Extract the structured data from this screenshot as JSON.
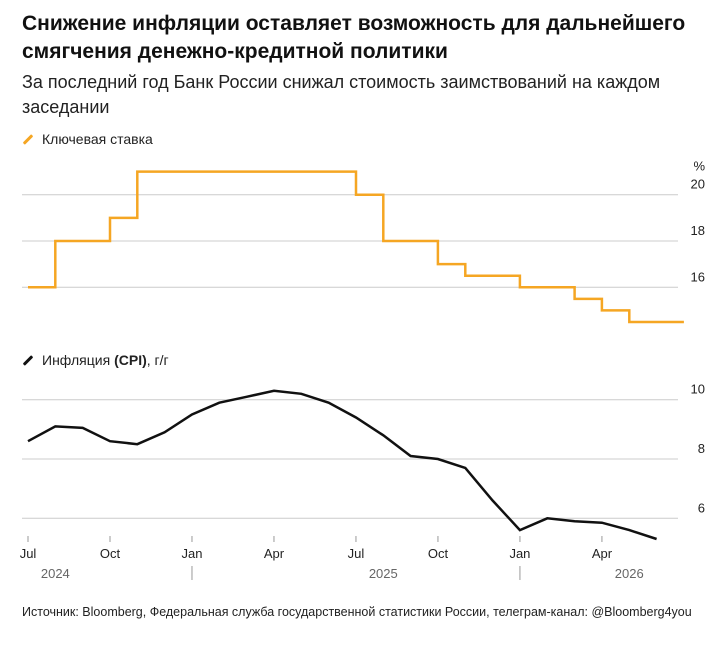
{
  "header": {
    "title": "Снижение инфляции оставляет возможность для дальнейшего смягчения денежно-кредитной политики",
    "subtitle": "За последний год Банк России снижал стоимость заимствований на каждом заседании"
  },
  "colors": {
    "rate": "#f5a623",
    "cpi": "#111111",
    "grid": "#cccccc"
  },
  "chart_data": [
    {
      "type": "line",
      "step": true,
      "series": [
        {
          "name": "Ключевая ставка",
          "points": [
            [
              "2024-06",
              16
            ],
            [
              "2024-07",
              16
            ],
            [
              "2024-07",
              18
            ],
            [
              "2024-09",
              18
            ],
            [
              "2024-09",
              19
            ],
            [
              "2024-10",
              19
            ],
            [
              "2024-10",
              21
            ],
            [
              "2025-06",
              21
            ],
            [
              "2025-06",
              20
            ],
            [
              "2025-07",
              20
            ],
            [
              "2025-07",
              18
            ],
            [
              "2025-09",
              18
            ],
            [
              "2025-09",
              17
            ],
            [
              "2025-10",
              17
            ],
            [
              "2025-10",
              16.5
            ],
            [
              "2025-12",
              16.5
            ],
            [
              "2025-12",
              16
            ],
            [
              "2026-02",
              16
            ],
            [
              "2026-02",
              15.5
            ],
            [
              "2026-03",
              15.5
            ],
            [
              "2026-03",
              15
            ],
            [
              "2026-04",
              15
            ],
            [
              "2026-04",
              14.5
            ],
            [
              "2026-06",
              14.5
            ]
          ]
        }
      ],
      "ylim": [
        14.5,
        21.5
      ],
      "yticks": [
        16,
        18,
        20
      ],
      "yunit": "%"
    },
    {
      "type": "line",
      "series": [
        {
          "name": "Инфляция (CPI), г/г",
          "points": [
            [
              "2024-06",
              8.6
            ],
            [
              "2024-07",
              9.1
            ],
            [
              "2024-08",
              9.05
            ],
            [
              "2024-09",
              8.6
            ],
            [
              "2024-10",
              8.5
            ],
            [
              "2024-11",
              8.9
            ],
            [
              "2024-12",
              9.5
            ],
            [
              "2025-01",
              9.9
            ],
            [
              "2025-02",
              10.1
            ],
            [
              "2025-03",
              10.3
            ],
            [
              "2025-04",
              10.2
            ],
            [
              "2025-05",
              9.9
            ],
            [
              "2025-06",
              9.4
            ],
            [
              "2025-07",
              8.8
            ],
            [
              "2025-08",
              8.1
            ],
            [
              "2025-09",
              8.0
            ],
            [
              "2025-10",
              7.7
            ],
            [
              "2025-11",
              6.6
            ],
            [
              "2025-12",
              5.6
            ],
            [
              "2026-01",
              6.0
            ],
            [
              "2026-02",
              5.9
            ],
            [
              "2026-03",
              5.85
            ],
            [
              "2026-04",
              5.6
            ],
            [
              "2026-05",
              5.3
            ]
          ]
        }
      ],
      "ylim": [
        5.2,
        10.8
      ],
      "yticks": [
        6,
        8,
        10
      ]
    }
  ],
  "xaxis": {
    "ticks": [
      {
        "date": "2024-06",
        "label": "Jul"
      },
      {
        "date": "2024-09",
        "label": "Oct"
      },
      {
        "date": "2024-12",
        "label": "Jan"
      },
      {
        "date": "2025-03",
        "label": "Apr"
      },
      {
        "date": "2025-06",
        "label": "Jul"
      },
      {
        "date": "2025-09",
        "label": "Oct"
      },
      {
        "date": "2025-12",
        "label": "Jan"
      },
      {
        "date": "2026-03",
        "label": "Apr"
      }
    ],
    "years": [
      {
        "date": "2024-07",
        "label": "2024"
      },
      {
        "date": "2025-07",
        "label": "2025"
      },
      {
        "date": "2026-04",
        "label": "2026"
      }
    ],
    "year_separators": [
      "2024-12",
      "2025-12"
    ]
  },
  "source": "Источник: Bloomberg, Федеральная служба государственной статистики России, телеграм-канал: @Bloomberg4you"
}
